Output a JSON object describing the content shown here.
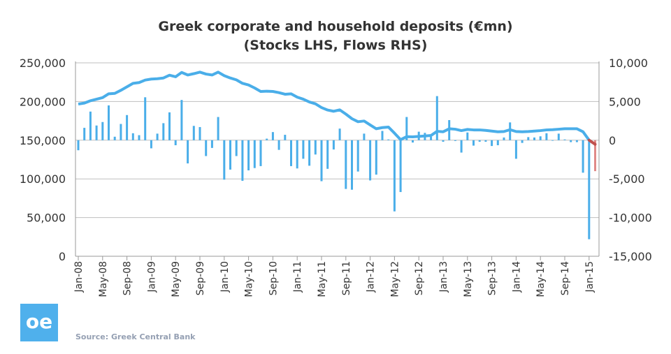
{
  "chart_data": {
    "type": "bar+line",
    "title": "Greek corporate and household deposits (€mn)",
    "subtitle": "(Stocks LHS, Flows RHS)",
    "source": "Source: Greek Central Bank",
    "logo_text": "oe",
    "colors": {
      "series": "#4aaee9",
      "latest": "#c0504d",
      "latest_bar": "#e08a88",
      "grid": "#bfbfbf"
    },
    "grid": true,
    "left_axis": {
      "ylim": [
        0,
        250000
      ],
      "tick_labels": [
        "0",
        "50,000",
        "100,000",
        "150,000",
        "200,000",
        "250,000"
      ]
    },
    "right_axis": {
      "ylim": [
        -15000,
        10000
      ],
      "tick_labels": [
        "-15,000",
        "-10,000",
        "-5,000",
        "0",
        "5,000",
        "10,000"
      ]
    },
    "x_tick_labels": [
      "Jan-08",
      "May-08",
      "Sep-08",
      "Jan-09",
      "May-09",
      "Sep-09",
      "Jan-10",
      "May-10",
      "Sep-10",
      "Jan-11",
      "May-11",
      "Sep-11",
      "Jan-12",
      "May-12",
      "Sep-12",
      "Jan-13",
      "May-13",
      "Sep-13",
      "Jan-14",
      "May-14",
      "Sep-14",
      "Jan-15"
    ],
    "x_start": "Jan-08",
    "x_end": "Feb-15",
    "series": [
      {
        "axis": "right",
        "kind": "bar",
        "values": [
          -1300,
          1600,
          3700,
          1900,
          2350,
          4500,
          450,
          2100,
          3250,
          900,
          650,
          5550,
          -1050,
          850,
          2200,
          3600,
          -650,
          5200,
          -3000,
          1850,
          1700,
          -2050,
          -1000,
          3000,
          -5100,
          -3800,
          -2050,
          -5250,
          -3900,
          -3600,
          -3350,
          200,
          1050,
          -1250,
          700,
          -3350,
          -3650,
          -2400,
          -3300,
          -1850,
          -5300,
          -3700,
          -1200,
          1500,
          -6300,
          -6400,
          -4050,
          850,
          -5200,
          -4450,
          1200,
          100,
          -9200,
          -6700,
          3000,
          -300,
          1100,
          950,
          450,
          5700,
          -200,
          2600,
          -100,
          -1600,
          1000,
          -700,
          -200,
          -200,
          -750,
          -650,
          350,
          2300,
          -2400,
          -350,
          400,
          350,
          500,
          900,
          0,
          850,
          100,
          -250,
          -250,
          -4200,
          -12800,
          -4000
        ]
      },
      {
        "axis": "left",
        "kind": "line",
        "values": [
          196700,
          198000,
          201000,
          203000,
          205000,
          210000,
          210500,
          214500,
          219000,
          223500,
          224500,
          227700,
          229000,
          229500,
          230400,
          234000,
          232000,
          237600,
          234300,
          236000,
          238000,
          235500,
          234300,
          238000,
          233400,
          230400,
          228000,
          223500,
          221400,
          217500,
          213000,
          213300,
          213000,
          211500,
          209400,
          210000,
          205700,
          203000,
          199400,
          197000,
          192200,
          189000,
          187400,
          189200,
          183800,
          177800,
          173900,
          174800,
          169700,
          164800,
          166300,
          167000,
          159100,
          150700,
          154600,
          154300,
          154900,
          155500,
          156100,
          161500,
          160900,
          164800,
          164200,
          162400,
          163900,
          163300,
          163300,
          162700,
          161800,
          160900,
          161200,
          163600,
          161200,
          160900,
          161200,
          161800,
          162400,
          163300,
          163600,
          164200,
          164800,
          164800,
          164800,
          160900,
          150100,
          144700
        ]
      }
    ]
  }
}
